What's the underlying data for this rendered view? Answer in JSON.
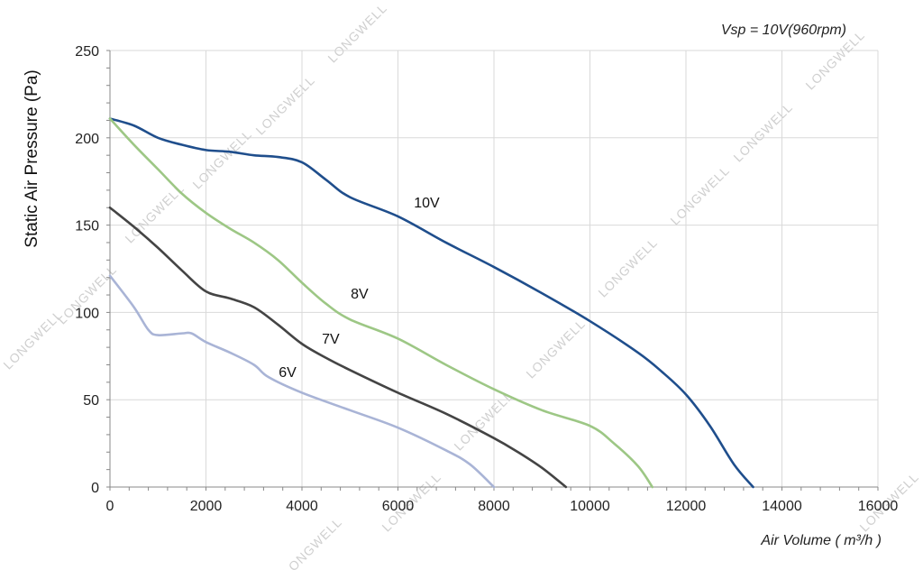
{
  "chart_data": {
    "type": "line",
    "annotation": "Vsp = 10V(960rpm)",
    "xlabel": "Air Volume ( m³/h )",
    "ylabel": "Static Air Pressure  (Pa)",
    "xlim": [
      0,
      16000
    ],
    "ylim": [
      0,
      250
    ],
    "xticks": [
      0,
      2000,
      4000,
      6000,
      8000,
      10000,
      12000,
      14000,
      16000
    ],
    "yticks": [
      0,
      50,
      100,
      150,
      200,
      250
    ],
    "grid": true,
    "watermark": "LONGWELL",
    "series": [
      {
        "name": "10V",
        "color": "#1f4e8c",
        "points": [
          [
            0,
            211
          ],
          [
            500,
            207
          ],
          [
            1000,
            200
          ],
          [
            1500,
            196
          ],
          [
            2000,
            193
          ],
          [
            2500,
            192
          ],
          [
            3000,
            190
          ],
          [
            3500,
            189
          ],
          [
            4000,
            186
          ],
          [
            4500,
            176
          ],
          [
            5000,
            166
          ],
          [
            6000,
            155
          ],
          [
            7000,
            140
          ],
          [
            8000,
            126
          ],
          [
            9000,
            111
          ],
          [
            10000,
            95
          ],
          [
            11000,
            77
          ],
          [
            11500,
            66
          ],
          [
            12000,
            53
          ],
          [
            12500,
            35
          ],
          [
            13000,
            13
          ],
          [
            13400,
            0
          ]
        ]
      },
      {
        "name": "8V",
        "color": "#9dc785",
        "points": [
          [
            0,
            211
          ],
          [
            500,
            196
          ],
          [
            1000,
            182
          ],
          [
            1500,
            168
          ],
          [
            2000,
            157
          ],
          [
            2500,
            148
          ],
          [
            3000,
            140
          ],
          [
            3500,
            130
          ],
          [
            4000,
            117
          ],
          [
            4500,
            105
          ],
          [
            5000,
            96
          ],
          [
            6000,
            85
          ],
          [
            7000,
            70
          ],
          [
            8000,
            56
          ],
          [
            9000,
            44
          ],
          [
            10000,
            35
          ],
          [
            10500,
            25
          ],
          [
            11000,
            12
          ],
          [
            11300,
            0
          ]
        ]
      },
      {
        "name": "7V",
        "color": "#444444",
        "points": [
          [
            0,
            160
          ],
          [
            500,
            149
          ],
          [
            1000,
            137
          ],
          [
            1500,
            124
          ],
          [
            2000,
            112
          ],
          [
            2500,
            108
          ],
          [
            3000,
            103
          ],
          [
            3500,
            93
          ],
          [
            4000,
            82
          ],
          [
            4500,
            74
          ],
          [
            5000,
            67
          ],
          [
            6000,
            54
          ],
          [
            7000,
            42
          ],
          [
            8000,
            28
          ],
          [
            8500,
            20
          ],
          [
            9000,
            11
          ],
          [
            9500,
            0
          ]
        ]
      },
      {
        "name": "6V",
        "color": "#a9b4d6",
        "points": [
          [
            0,
            121
          ],
          [
            500,
            103
          ],
          [
            800,
            90
          ],
          [
            1000,
            87
          ],
          [
            1500,
            88
          ],
          [
            1700,
            88
          ],
          [
            2000,
            83
          ],
          [
            2500,
            77
          ],
          [
            3000,
            70
          ],
          [
            3300,
            63
          ],
          [
            4000,
            54
          ],
          [
            5000,
            44
          ],
          [
            6000,
            34
          ],
          [
            7000,
            21
          ],
          [
            7500,
            13
          ],
          [
            8000,
            0
          ]
        ]
      }
    ]
  }
}
